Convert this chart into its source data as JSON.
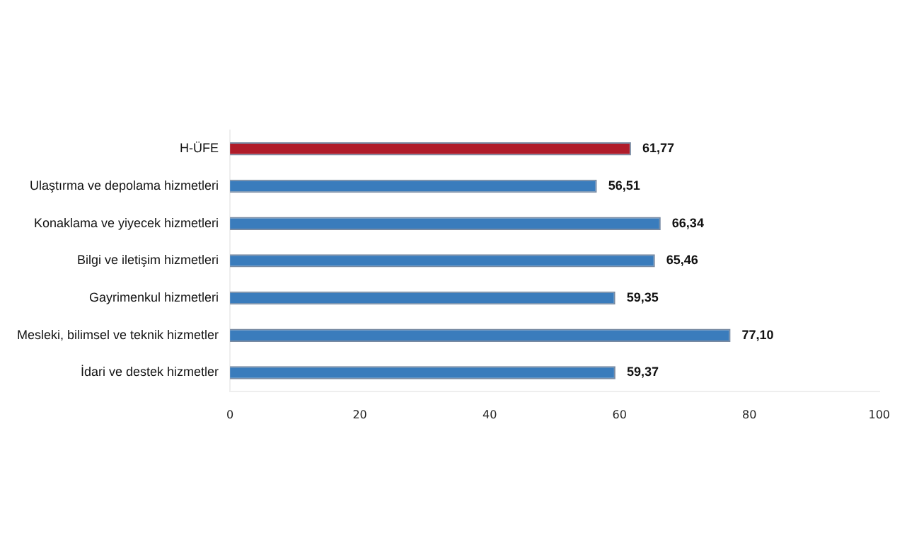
{
  "chart_data": {
    "type": "bar",
    "orientation": "horizontal",
    "categories": [
      "H-ÜFE",
      "Ulaştırma ve depolama hizmetleri",
      "Konaklama ve yiyecek hizmetleri",
      "Bilgi ve iletişim hizmetleri",
      "Gayrimenkul hizmetleri",
      "Mesleki, bilimsel ve teknik hizmetler",
      "İdari ve destek hizmetler"
    ],
    "values": [
      61.77,
      56.51,
      66.34,
      65.46,
      59.35,
      77.1,
      59.37
    ],
    "colors": [
      "#b01c2a",
      "#3a7cbc",
      "#3a7cbc",
      "#3a7cbc",
      "#3a7cbc",
      "#3a7cbc",
      "#3a7cbc"
    ],
    "value_labels": [
      "61,77",
      "56,51",
      "66,34",
      "65,46",
      "59,35",
      "77,10",
      "59,37"
    ],
    "xlim": [
      0,
      100
    ],
    "xticks": [
      0,
      20,
      40,
      60,
      80,
      100
    ],
    "grid": false,
    "legend": false
  }
}
